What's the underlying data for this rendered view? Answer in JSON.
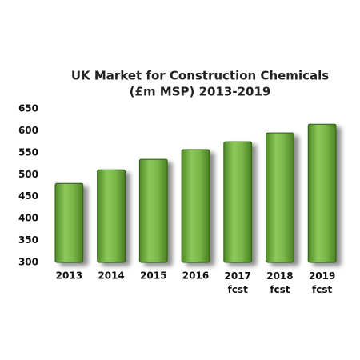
{
  "chart_data": {
    "type": "bar",
    "title": [
      "UK Market for Construction Chemicals",
      "(£m MSP) 2013-2019"
    ],
    "categories": [
      "2013",
      "2014",
      "2015",
      "2016",
      "2017\nfcst",
      "2018\nfcst",
      "2019\nfcst"
    ],
    "values": [
      480,
      511,
      535,
      557,
      575,
      595,
      615
    ],
    "color": "#7ab648",
    "ylim": [
      300,
      650
    ],
    "yticks": [
      300,
      350,
      400,
      450,
      500,
      550,
      600,
      650
    ],
    "grid": false
  }
}
